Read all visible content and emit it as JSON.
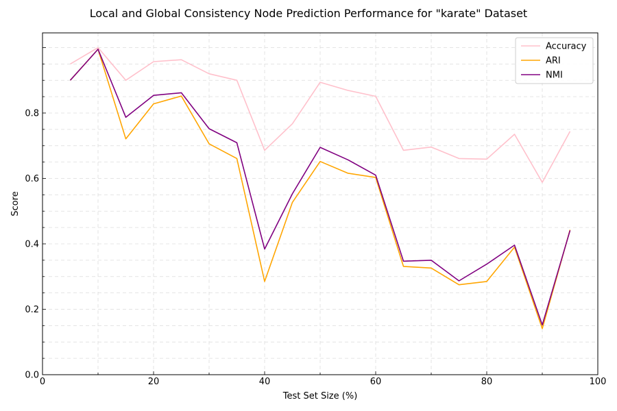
{
  "chart_data": {
    "type": "line",
    "title": "Local and Global Consistency Node Prediction Performance for \"karate\" Dataset",
    "xlabel": "Test Set Size (%)",
    "ylabel": "Score",
    "xlim": [
      0,
      100
    ],
    "ylim": [
      0,
      1.045
    ],
    "xticks": [
      0,
      20,
      40,
      60,
      80,
      100
    ],
    "xtick_labels": [
      "0",
      "20",
      "40",
      "60",
      "80",
      "100"
    ],
    "yticks": [
      0.0,
      0.2,
      0.4,
      0.6,
      0.8
    ],
    "ytick_labels": [
      "0.0",
      "0.2",
      "0.4",
      "0.6",
      "0.8"
    ],
    "grid": true,
    "legend_position": "top-right",
    "x": [
      5,
      10,
      15,
      20,
      25,
      30,
      35,
      40,
      45,
      50,
      55,
      60,
      65,
      70,
      75,
      80,
      85,
      90,
      95
    ],
    "series": [
      {
        "name": "Accuracy",
        "color": "#ffc0cb",
        "values": [
          0.95,
          1.0,
          0.9,
          0.957,
          0.963,
          0.92,
          0.9,
          0.686,
          0.767,
          0.894,
          0.869,
          0.851,
          0.686,
          0.696,
          0.661,
          0.659,
          0.735,
          0.588,
          0.744
        ]
      },
      {
        "name": "ARI",
        "color": "#ffa500",
        "values": [
          0.9,
          0.995,
          0.721,
          0.828,
          0.852,
          0.706,
          0.661,
          0.285,
          0.527,
          0.652,
          0.616,
          0.603,
          0.331,
          0.326,
          0.275,
          0.285,
          0.39,
          0.141,
          0.443
        ]
      },
      {
        "name": "NMI",
        "color": "#800080",
        "values": [
          0.9,
          0.995,
          0.787,
          0.854,
          0.862,
          0.752,
          0.709,
          0.384,
          0.553,
          0.695,
          0.657,
          0.61,
          0.347,
          0.35,
          0.287,
          0.338,
          0.396,
          0.152,
          0.441
        ]
      }
    ]
  }
}
